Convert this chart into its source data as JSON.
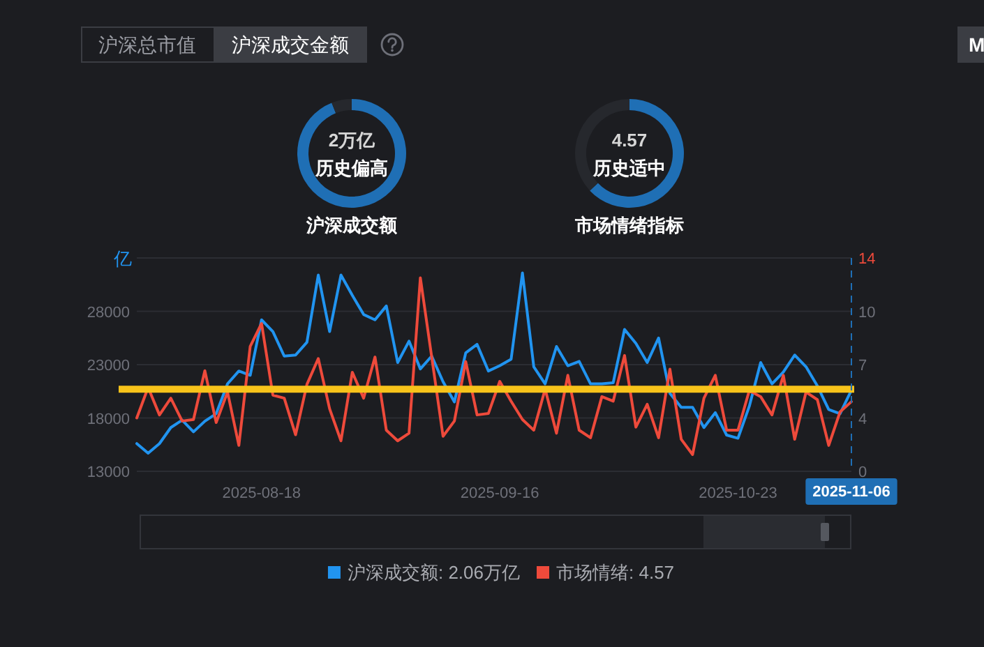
{
  "chart_data": [
    {
      "type": "other",
      "annotations": [
        "沪深总市值",
        "沪深成交金额",
        "M"
      ]
    },
    {
      "type": "donut",
      "title": "沪深成交额",
      "annotations": [
        "2万亿",
        "历史偏高"
      ],
      "categories": [
        null,
        null
      ],
      "values": [
        94,
        6
      ],
      "colors": [
        "#1f6fb5",
        "#26282d"
      ]
    },
    {
      "type": "donut",
      "title": "市场情绪指标",
      "annotations": [
        "4.57",
        "历史适中"
      ],
      "categories": [
        null,
        null
      ],
      "values": [
        63,
        37
      ],
      "colors": [
        "#1f6fb5",
        "#26282d"
      ]
    },
    {
      "type": "line",
      "categories": [
        null,
        null,
        null,
        null,
        null,
        null,
        null,
        null,
        null,
        null,
        null,
        "2025-08-18",
        null,
        null,
        null,
        null,
        null,
        null,
        null,
        null,
        null,
        null,
        null,
        null,
        null,
        null,
        null,
        null,
        null,
        null,
        null,
        null,
        "2025-09-16",
        null,
        null,
        null,
        null,
        null,
        null,
        null,
        null,
        null,
        null,
        null,
        null,
        null,
        null,
        null,
        null,
        null,
        null,
        null,
        null,
        "2025-10-23",
        null,
        null,
        null,
        null,
        null,
        null,
        null,
        null,
        null,
        "2025-11-06"
      ],
      "series": [
        {
          "name": "沪深成交额: 2.06万亿",
          "color": "#2194f0",
          "values": [
            15600,
            14700,
            15600,
            17100,
            17800,
            16700,
            17700,
            18400,
            21200,
            22400,
            22000,
            27200,
            26100,
            23800,
            23900,
            25100,
            31400,
            26100,
            31400,
            29500,
            27700,
            27200,
            28500,
            23200,
            25200,
            22600,
            23800,
            21400,
            19500,
            24100,
            24900,
            22400,
            22900,
            23500,
            31600,
            22800,
            21200,
            24700,
            22900,
            23300,
            21200,
            21200,
            21300,
            26300,
            25000,
            23200,
            25500,
            20300,
            19000,
            19000,
            17100,
            18500,
            16400,
            16100,
            19100,
            23200,
            21200,
            22300,
            23900,
            22800,
            21000,
            18800,
            18400,
            20600
          ]
        },
        {
          "name": "市场情绪: 4.57",
          "color": "#ee4a3b",
          "axis": "y2",
          "values": [
            3.5,
            5.5,
            3.7,
            4.8,
            3.3,
            3.4,
            6.6,
            3.2,
            5.2,
            1.7,
            8.2,
            9.7,
            5.0,
            4.8,
            2.4,
            5.7,
            7.4,
            4.1,
            2.0,
            6.5,
            4.8,
            7.5,
            2.7,
            2.0,
            2.5,
            12.7,
            7.5,
            2.3,
            3.3,
            7.2,
            3.7,
            3.8,
            5.9,
            4.6,
            3.4,
            2.7,
            5.4,
            2.5,
            6.3,
            2.7,
            2.2,
            4.9,
            4.6,
            7.6,
            2.9,
            4.4,
            2.2,
            6.7,
            2.1,
            1.1,
            4.8,
            6.3,
            2.7,
            2.7,
            5.3,
            4.9,
            3.7,
            6.3,
            2.1,
            5.2,
            4.7,
            1.7,
            3.9,
            4.57
          ]
        }
      ],
      "ylabel": "亿",
      "ylim": [
        13000,
        33000
      ],
      "yticks": [
        13000,
        18000,
        23000,
        28000,
        {
          "value": 33000,
          "label": null
        }
      ],
      "y2lim": [
        0,
        14
      ],
      "y2ticks": [
        0,
        {
          "value": 3.5,
          "label": "4"
        },
        7,
        {
          "value": 10.5,
          "label": "10"
        },
        14
      ],
      "ref_lines": [
        {
          "axis": "y",
          "value": 20700,
          "color": "#f7c31a",
          "line_style": "solid"
        },
        {
          "axis": "x",
          "value": "2025-11-06",
          "color": "#1f6fb5",
          "line_style": "dashed"
        }
      ],
      "grid": "y",
      "legend": "bottom",
      "marker": "none",
      "line_style": "solid"
    }
  ]
}
